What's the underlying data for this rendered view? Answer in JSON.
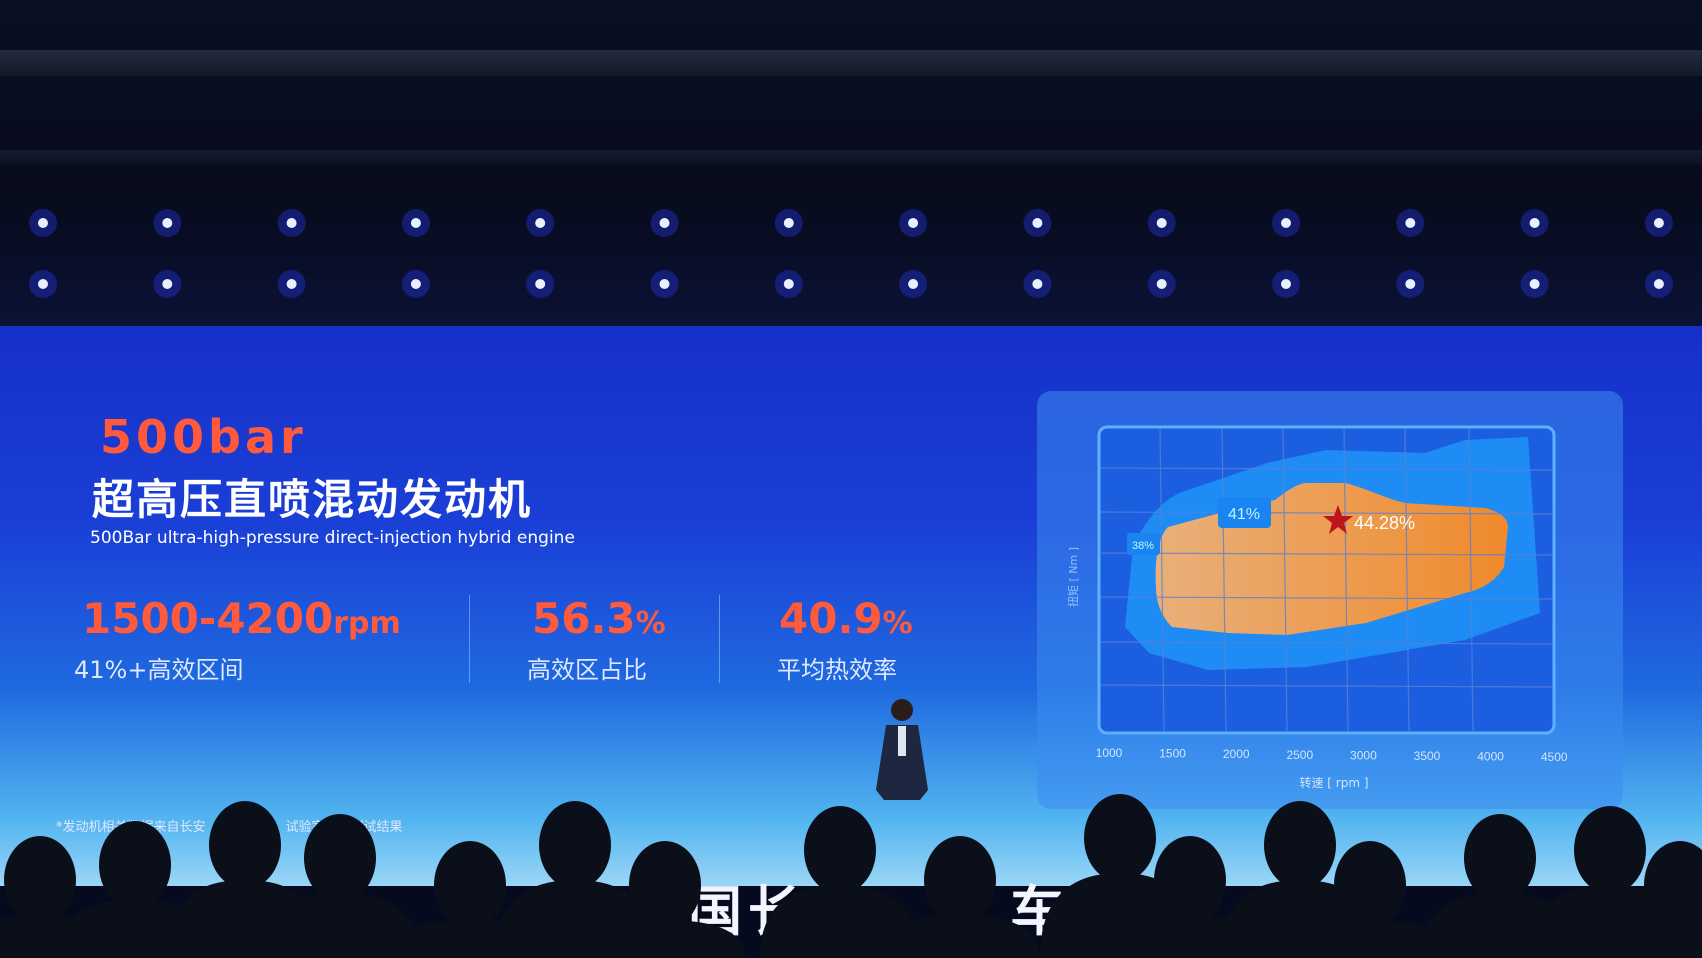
{
  "slide": {
    "headline_value": "500bar",
    "headline_cn": "超高压直喷混动发动机",
    "headline_en": "500Bar ultra-high-pressure direct-injection hybrid engine",
    "stats": [
      {
        "value": "1500-4200",
        "unit": "rpm",
        "label": "41%+高效区间"
      },
      {
        "value": "56.3",
        "unit": "%",
        "label": "高效区占比"
      },
      {
        "value": "40.9",
        "unit": "%",
        "label": "平均热效率"
      }
    ],
    "footnote": "*发动机相关数据来自长安",
    "footnote_tail": "试验室台架测试结果",
    "accent_color": "#ff5a3c"
  },
  "chart": {
    "y_label": "扭矩 [ Nm ]",
    "x_label": "转速 [ rpm ]",
    "x_ticks": [
      "1000",
      "1500",
      "2000",
      "2500",
      "3000",
      "3500",
      "4000",
      "4500"
    ],
    "zones": [
      {
        "label": "38%",
        "color": "#1f8cf5"
      },
      {
        "label": "41%",
        "color": "#f0953a"
      }
    ],
    "peak_label": "44.28%",
    "peak_color": "#c0141c"
  },
  "stage_logo": {
    "left": "中国长",
    "right": "车"
  }
}
